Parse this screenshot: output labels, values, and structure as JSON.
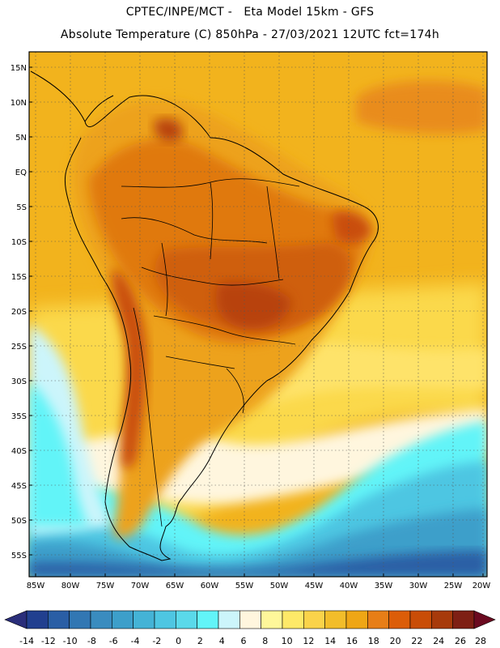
{
  "title": {
    "line1": "CPTEC/INPE/MCT -   Eta Model 15km - GFS",
    "line2": "Absolute Temperature (C) 850hPa - 27/03/2021 12UTC fct=174h"
  },
  "axes": {
    "lat_labels": [
      "15N",
      "10N",
      "5N",
      "EQ",
      "5S",
      "10S",
      "15S",
      "20S",
      "25S",
      "30S",
      "35S",
      "40S",
      "45S",
      "50S",
      "55S"
    ],
    "lon_labels": [
      "85W",
      "80W",
      "75W",
      "70W",
      "65W",
      "60W",
      "55W",
      "50W",
      "45W",
      "40W",
      "35W",
      "30W",
      "25W",
      "20W"
    ]
  },
  "legend": {
    "colors": [
      "#213f8f",
      "#2a5ea5",
      "#3277b3",
      "#3a8cbf",
      "#3d9fca",
      "#44b3d6",
      "#4ec6e2",
      "#5ad9ea",
      "#62f4f8",
      "#ccf5fb",
      "#fff6de",
      "#fef79a",
      "#fee968",
      "#fad34a",
      "#f2bd2a",
      "#efa615",
      "#e77e17",
      "#dc5d08",
      "#c94d07",
      "#a73a0b",
      "#7e1f14"
    ],
    "labels": [
      "-14",
      "-12",
      "-10",
      "-8",
      "-6",
      "-4",
      "-2",
      "0",
      "2",
      "4",
      "6",
      "8",
      "10",
      "12",
      "14",
      "16",
      "18",
      "20",
      "22",
      "24",
      "26",
      "28"
    ],
    "under_color": "#2a2e7a",
    "over_color": "#6b0a20"
  }
}
